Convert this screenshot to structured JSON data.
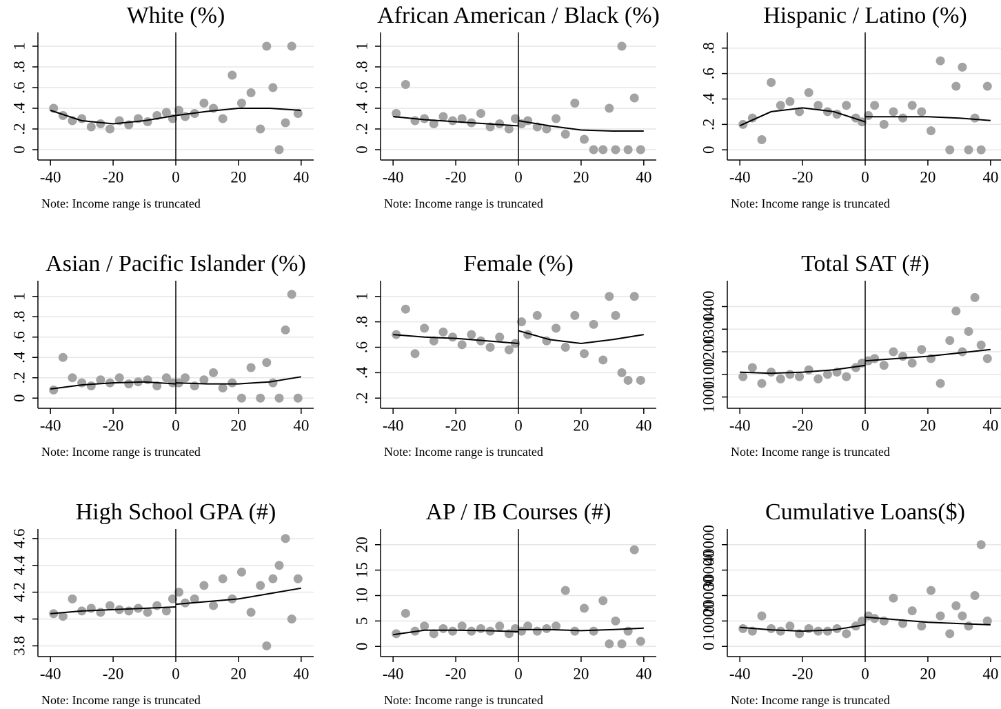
{
  "chart_data": [
    {
      "type": "scatter",
      "title": "White (%)",
      "note": "Note: Income range is truncated",
      "xlim": [
        -44,
        44
      ],
      "xticks": [
        -40,
        -20,
        0,
        20,
        40
      ],
      "ylim": [
        -0.1,
        1.08
      ],
      "yticks": [
        0,
        {
          "value": 0.2,
          "label": ".2"
        },
        {
          "value": 0.4,
          "label": ".4"
        },
        {
          "value": 0.6,
          "label": ".6"
        },
        {
          "value": 0.8,
          "label": ".8"
        },
        1
      ],
      "grid": true,
      "vline": 0,
      "points": {
        "color": "#a3a3a3",
        "x": [
          -39,
          -36,
          -33,
          -30,
          -27,
          -24,
          -21,
          -18,
          -15,
          -12,
          -9,
          -6,
          -3,
          -1,
          1,
          3,
          6,
          9,
          12,
          15,
          18,
          21,
          24,
          27,
          29,
          31,
          33,
          35,
          37,
          39
        ],
        "values": [
          0.4,
          0.33,
          0.28,
          0.3,
          0.22,
          0.25,
          0.2,
          0.28,
          0.24,
          0.3,
          0.27,
          0.33,
          0.36,
          0.3,
          0.38,
          0.32,
          0.35,
          0.45,
          0.4,
          0.3,
          0.72,
          0.45,
          0.55,
          0.2,
          1.0,
          0.6,
          0,
          0.26,
          1.0,
          0.35
        ]
      },
      "fits": [
        {
          "color": "#000000",
          "x": [
            -40,
            -30,
            -20,
            -10,
            0
          ],
          "values": [
            0.38,
            0.28,
            0.25,
            0.28,
            0.33
          ]
        },
        {
          "color": "#000000",
          "x": [
            0,
            10,
            20,
            30,
            40
          ],
          "values": [
            0.33,
            0.37,
            0.4,
            0.4,
            0.38
          ]
        }
      ]
    },
    {
      "type": "scatter",
      "title": "African American / Black (%)",
      "note": "Note: Income range is truncated",
      "xlim": [
        -44,
        44
      ],
      "xticks": [
        -40,
        -20,
        0,
        20,
        40
      ],
      "ylim": [
        -0.1,
        1.08
      ],
      "yticks": [
        0,
        {
          "value": 0.2,
          "label": ".2"
        },
        {
          "value": 0.4,
          "label": ".4"
        },
        {
          "value": 0.6,
          "label": ".6"
        },
        {
          "value": 0.8,
          "label": ".8"
        },
        1
      ],
      "grid": true,
      "vline": 0,
      "points": {
        "color": "#a3a3a3",
        "x": [
          -39,
          -36,
          -33,
          -30,
          -27,
          -24,
          -21,
          -18,
          -15,
          -12,
          -9,
          -6,
          -3,
          -1,
          1,
          3,
          6,
          9,
          12,
          15,
          18,
          21,
          24,
          27,
          29,
          31,
          33,
          35,
          37,
          39
        ],
        "values": [
          0.35,
          0.63,
          0.28,
          0.3,
          0.25,
          0.32,
          0.28,
          0.3,
          0.26,
          0.35,
          0.22,
          0.25,
          0.2,
          0.3,
          0.25,
          0.28,
          0.22,
          0.2,
          0.3,
          0.15,
          0.45,
          0.1,
          0,
          0,
          0.4,
          0,
          1.0,
          0,
          0.5,
          0
        ]
      },
      "fits": [
        {
          "color": "#000000",
          "x": [
            -40,
            -30,
            -20,
            -10,
            0
          ],
          "values": [
            0.32,
            0.29,
            0.27,
            0.25,
            0.23
          ]
        },
        {
          "color": "#000000",
          "x": [
            0,
            10,
            20,
            30,
            40
          ],
          "values": [
            0.28,
            0.23,
            0.19,
            0.18,
            0.18
          ]
        }
      ]
    },
    {
      "type": "scatter",
      "title": "Hispanic / Latino (%)",
      "note": "Note: Income range is truncated",
      "xlim": [
        -44,
        44
      ],
      "xticks": [
        -40,
        -20,
        0,
        20,
        40
      ],
      "ylim": [
        -0.08,
        0.88
      ],
      "yticks": [
        0,
        {
          "value": 0.2,
          "label": ".2"
        },
        {
          "value": 0.4,
          "label": ".4"
        },
        {
          "value": 0.6,
          "label": ".6"
        },
        {
          "value": 0.8,
          "label": ".8"
        }
      ],
      "grid": true,
      "vline": 0,
      "points": {
        "color": "#a3a3a3",
        "x": [
          -39,
          -36,
          -33,
          -30,
          -27,
          -24,
          -21,
          -18,
          -15,
          -12,
          -9,
          -6,
          -3,
          -1,
          1,
          3,
          6,
          9,
          12,
          15,
          18,
          21,
          24,
          27,
          29,
          31,
          33,
          35,
          37,
          39
        ],
        "values": [
          0.2,
          0.25,
          0.08,
          0.53,
          0.35,
          0.38,
          0.3,
          0.45,
          0.35,
          0.3,
          0.28,
          0.35,
          0.25,
          0.22,
          0.27,
          0.35,
          0.2,
          0.3,
          0.25,
          0.35,
          0.3,
          0.15,
          0.7,
          0,
          0.5,
          0.65,
          0,
          0.25,
          0,
          0.5
        ]
      },
      "fits": [
        {
          "color": "#000000",
          "x": [
            -40,
            -30,
            -20,
            -10,
            0
          ],
          "values": [
            0.19,
            0.3,
            0.33,
            0.3,
            0.22
          ]
        },
        {
          "color": "#000000",
          "x": [
            0,
            10,
            20,
            30,
            40
          ],
          "values": [
            0.26,
            0.26,
            0.26,
            0.25,
            0.23
          ]
        }
      ]
    },
    {
      "type": "scatter",
      "title": "Asian / Pacific Islander (%)",
      "note": "Note: Income range is truncated",
      "xlim": [
        -44,
        44
      ],
      "xticks": [
        -40,
        -20,
        0,
        20,
        40
      ],
      "ylim": [
        -0.1,
        1.1
      ],
      "yticks": [
        0,
        {
          "value": 0.2,
          "label": ".2"
        },
        {
          "value": 0.4,
          "label": ".4"
        },
        {
          "value": 0.6,
          "label": ".6"
        },
        {
          "value": 0.8,
          "label": ".8"
        },
        1
      ],
      "grid": true,
      "vline": 0,
      "points": {
        "color": "#a3a3a3",
        "x": [
          -39,
          -36,
          -33,
          -30,
          -27,
          -24,
          -21,
          -18,
          -15,
          -12,
          -9,
          -6,
          -3,
          -1,
          1,
          3,
          6,
          9,
          12,
          15,
          18,
          21,
          24,
          27,
          29,
          31,
          33,
          35,
          37,
          39
        ],
        "values": [
          0.08,
          0.4,
          0.2,
          0.15,
          0.12,
          0.18,
          0.15,
          0.2,
          0.14,
          0.16,
          0.18,
          0.12,
          0.2,
          0.15,
          0.15,
          0.2,
          0.12,
          0.18,
          0.25,
          0.1,
          0.15,
          0,
          0.3,
          0,
          0.35,
          0.15,
          0,
          0.67,
          1.02,
          0
        ]
      },
      "fits": [
        {
          "color": "#000000",
          "x": [
            -40,
            -30,
            -20,
            -10,
            0
          ],
          "values": [
            0.09,
            0.13,
            0.15,
            0.16,
            0.14
          ]
        },
        {
          "color": "#000000",
          "x": [
            0,
            10,
            20,
            30,
            40
          ],
          "values": [
            0.15,
            0.14,
            0.14,
            0.16,
            0.21
          ]
        }
      ]
    },
    {
      "type": "scatter",
      "title": "Female (%)",
      "note": "Note: Income range is truncated",
      "xlim": [
        -44,
        44
      ],
      "xticks": [
        -40,
        -20,
        0,
        20,
        40
      ],
      "ylim": [
        0.12,
        1.08
      ],
      "yticks": [
        {
          "value": 0.2,
          "label": ".2"
        },
        {
          "value": 0.4,
          "label": ".4"
        },
        {
          "value": 0.6,
          "label": ".6"
        },
        {
          "value": 0.8,
          "label": ".8"
        },
        1
      ],
      "grid": true,
      "vline": 0,
      "points": {
        "color": "#a3a3a3",
        "x": [
          -39,
          -36,
          -33,
          -30,
          -27,
          -24,
          -21,
          -18,
          -15,
          -12,
          -9,
          -6,
          -3,
          -1,
          1,
          3,
          6,
          9,
          12,
          15,
          18,
          21,
          24,
          27,
          29,
          31,
          33,
          35,
          37,
          39
        ],
        "values": [
          0.7,
          0.9,
          0.55,
          0.75,
          0.65,
          0.72,
          0.68,
          0.62,
          0.7,
          0.65,
          0.6,
          0.68,
          0.58,
          0.63,
          0.8,
          0.7,
          0.85,
          0.65,
          0.75,
          0.6,
          0.85,
          0.55,
          0.78,
          0.5,
          1.0,
          0.85,
          0.4,
          0.34,
          1.0,
          0.34
        ]
      },
      "fits": [
        {
          "color": "#000000",
          "x": [
            -40,
            -30,
            -20,
            -10,
            0
          ],
          "values": [
            0.7,
            0.68,
            0.67,
            0.65,
            0.63
          ]
        },
        {
          "color": "#000000",
          "x": [
            0,
            10,
            20,
            30,
            40
          ],
          "values": [
            0.73,
            0.66,
            0.63,
            0.66,
            0.7
          ]
        }
      ]
    },
    {
      "type": "scatter",
      "title": "Total SAT (#)",
      "note": "Note: Income range is truncated",
      "xlim": [
        -44,
        44
      ],
      "xticks": [
        -40,
        -20,
        0,
        20,
        40
      ],
      "ylim": [
        950,
        1490
      ],
      "yticks": [
        1000,
        1100,
        1200,
        1300,
        1400
      ],
      "grid": true,
      "vline": 0,
      "points": {
        "color": "#a3a3a3",
        "x": [
          -39,
          -36,
          -33,
          -30,
          -27,
          -24,
          -21,
          -18,
          -15,
          -12,
          -9,
          -6,
          -3,
          -1,
          1,
          3,
          6,
          9,
          12,
          15,
          18,
          21,
          24,
          27,
          29,
          31,
          33,
          35,
          37,
          39
        ],
        "values": [
          1090,
          1130,
          1060,
          1110,
          1080,
          1100,
          1090,
          1120,
          1080,
          1100,
          1110,
          1090,
          1130,
          1150,
          1160,
          1170,
          1140,
          1200,
          1180,
          1150,
          1210,
          1170,
          1060,
          1250,
          1380,
          1200,
          1290,
          1440,
          1230,
          1170
        ]
      },
      "fits": [
        {
          "color": "#000000",
          "x": [
            -40,
            -30,
            -20,
            -10,
            0
          ],
          "values": [
            1110,
            1105,
            1110,
            1120,
            1140
          ]
        },
        {
          "color": "#000000",
          "x": [
            0,
            10,
            20,
            30,
            40
          ],
          "values": [
            1160,
            1170,
            1180,
            1195,
            1210
          ]
        }
      ]
    },
    {
      "type": "scatter",
      "title": "High School GPA (#)",
      "note": "Note: Income range is truncated",
      "xlim": [
        -44,
        44
      ],
      "xticks": [
        -40,
        -20,
        0,
        20,
        40
      ],
      "ylim": [
        3.72,
        4.63
      ],
      "yticks": [
        3.8,
        4,
        4.2,
        4.4,
        4.6
      ],
      "grid": true,
      "vline": 0,
      "points": {
        "color": "#a3a3a3",
        "x": [
          -39,
          -36,
          -33,
          -30,
          -27,
          -24,
          -21,
          -18,
          -15,
          -12,
          -9,
          -6,
          -3,
          -1,
          1,
          3,
          6,
          9,
          12,
          15,
          18,
          21,
          24,
          27,
          29,
          31,
          33,
          35,
          37,
          39
        ],
        "values": [
          4.04,
          4.02,
          4.15,
          4.06,
          4.08,
          4.05,
          4.1,
          4.07,
          4.06,
          4.08,
          4.05,
          4.1,
          4.06,
          4.15,
          4.2,
          4.12,
          4.15,
          4.25,
          4.1,
          4.3,
          4.15,
          4.35,
          4.05,
          4.25,
          3.8,
          4.3,
          4.4,
          4.6,
          4.0,
          4.3
        ]
      },
      "fits": [
        {
          "color": "#000000",
          "x": [
            -40,
            -30,
            -20,
            -10,
            0
          ],
          "values": [
            4.04,
            4.06,
            4.07,
            4.08,
            4.09
          ]
        },
        {
          "color": "#000000",
          "x": [
            0,
            10,
            20,
            30,
            40
          ],
          "values": [
            4.11,
            4.13,
            4.15,
            4.19,
            4.23
          ]
        }
      ]
    },
    {
      "type": "scatter",
      "title": "AP / IB Courses (#)",
      "note": "Note: Income range is truncated",
      "xlim": [
        -44,
        44
      ],
      "xticks": [
        -40,
        -20,
        0,
        20,
        40
      ],
      "ylim": [
        -2,
        22
      ],
      "yticks": [
        0,
        5,
        10,
        15,
        20
      ],
      "grid": true,
      "vline": 0,
      "points": {
        "color": "#a3a3a3",
        "x": [
          -39,
          -36,
          -33,
          -30,
          -27,
          -24,
          -21,
          -18,
          -15,
          -12,
          -9,
          -6,
          -3,
          -1,
          1,
          3,
          6,
          9,
          12,
          15,
          18,
          21,
          24,
          27,
          29,
          31,
          33,
          35,
          37,
          39
        ],
        "values": [
          2.5,
          6.5,
          3,
          4,
          2.5,
          3.5,
          3,
          4,
          3,
          3.5,
          3,
          4,
          2.5,
          3.5,
          3,
          4,
          3,
          3.5,
          4,
          11,
          3,
          7.5,
          3,
          9,
          0.5,
          5,
          0.5,
          3,
          19,
          1
        ]
      },
      "fits": [
        {
          "color": "#000000",
          "x": [
            -40,
            -30,
            -20,
            -10,
            0
          ],
          "values": [
            2.3,
            3.2,
            3.2,
            3.1,
            2.9
          ]
        },
        {
          "color": "#000000",
          "x": [
            0,
            10,
            20,
            30,
            40
          ],
          "values": [
            3.3,
            3.3,
            3.1,
            3.3,
            3.6
          ]
        }
      ]
    },
    {
      "type": "scatter",
      "title": "Cumulative Loans($)",
      "note": "Note: Income range is truncated",
      "xlim": [
        -44,
        44
      ],
      "xticks": [
        -40,
        -20,
        0,
        20,
        40
      ],
      "ylim": [
        -4000,
        44000
      ],
      "yticks": [
        0,
        10000,
        20000,
        30000,
        40000
      ],
      "grid": true,
      "vline": 0,
      "points": {
        "color": "#a3a3a3",
        "x": [
          -39,
          -36,
          -33,
          -30,
          -27,
          -24,
          -21,
          -18,
          -15,
          -12,
          -9,
          -6,
          -3,
          -1,
          1,
          3,
          6,
          9,
          12,
          15,
          18,
          21,
          24,
          27,
          29,
          31,
          33,
          35,
          37,
          39
        ],
        "values": [
          7000,
          6000,
          12000,
          7000,
          6000,
          8000,
          5000,
          7000,
          6000,
          6000,
          7000,
          5000,
          8000,
          10000,
          12000,
          11000,
          10000,
          19000,
          9000,
          14000,
          8000,
          22000,
          12000,
          5000,
          16000,
          12000,
          8000,
          20000,
          40000,
          10000
        ]
      },
      "fits": [
        {
          "color": "#000000",
          "x": [
            -40,
            -30,
            -20,
            -10,
            0
          ],
          "values": [
            7500,
            6500,
            6000,
            6500,
            8500
          ]
        },
        {
          "color": "#000000",
          "x": [
            0,
            10,
            20,
            30,
            40
          ],
          "values": [
            11500,
            10500,
            9500,
            9000,
            8500
          ]
        }
      ]
    }
  ]
}
